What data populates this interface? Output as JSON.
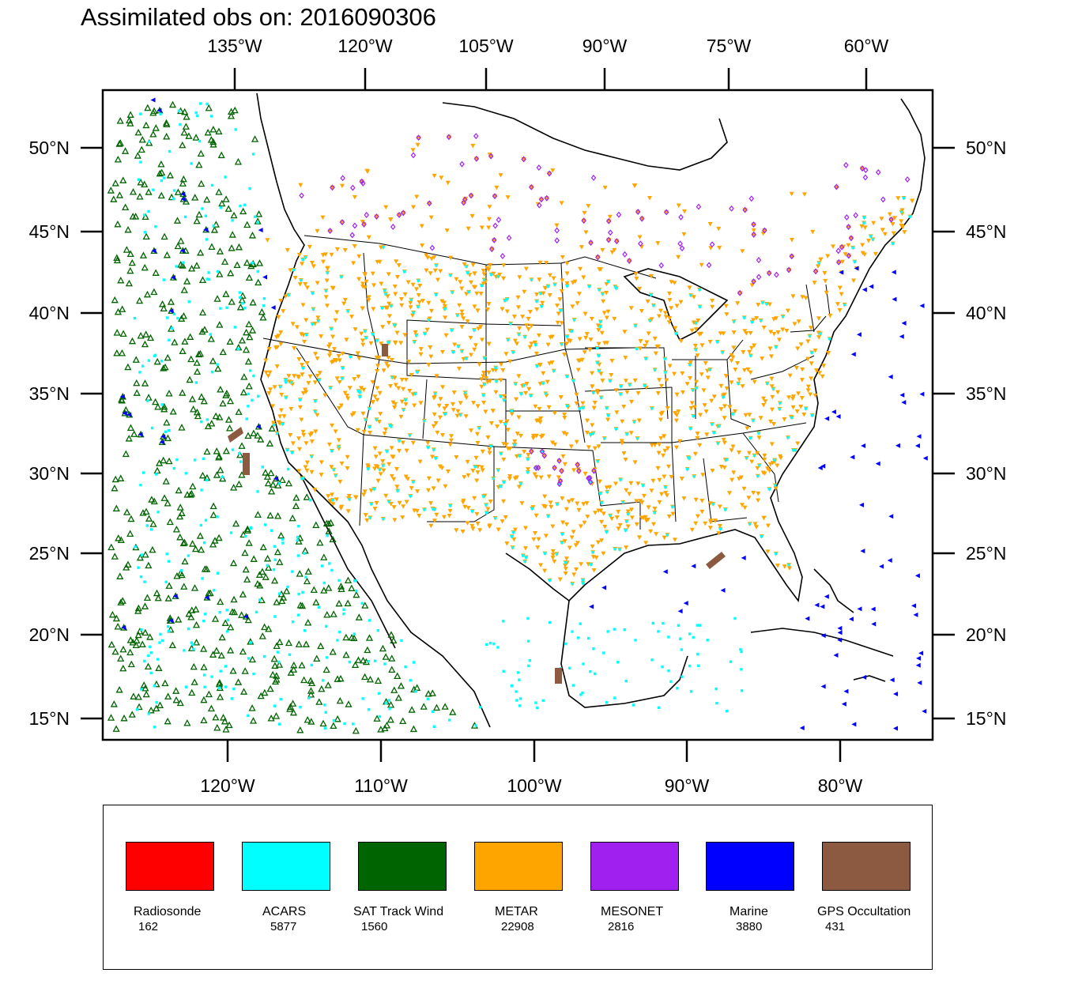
{
  "map": {
    "title": "Assimilated obs on: 2016090306",
    "top_axis_labels": [
      "135°W",
      "120°W",
      "105°W",
      "90°W",
      "75°W",
      "60°W"
    ],
    "bottom_axis_labels": [
      "120°W",
      "110°W",
      "100°W",
      "90°W",
      "80°W"
    ],
    "left_axis_labels": [
      "50°N",
      "45°N",
      "40°N",
      "35°N",
      "30°N",
      "25°N",
      "20°N",
      "15°N"
    ],
    "right_axis_labels": [
      "50°N",
      "45°N",
      "40°N",
      "35°N",
      "30°N",
      "25°N",
      "20°N",
      "15°N"
    ]
  },
  "legend": {
    "items": [
      {
        "name": "Radiosonde",
        "count": "162",
        "color": "#ff0000"
      },
      {
        "name": "ACARS",
        "count": "5877",
        "color": "#00ffff"
      },
      {
        "name": "SAT Track Wind",
        "count": "1560",
        "color": "#006400"
      },
      {
        "name": "METAR",
        "count": "22908",
        "color": "#ffa500"
      },
      {
        "name": "MESONET",
        "count": "2816",
        "color": "#a020f0"
      },
      {
        "name": "Marine",
        "count": "3880",
        "color": "#0000ff"
      },
      {
        "name": "GPS Occultation",
        "count": "431",
        "color": "#8b5a40"
      }
    ]
  },
  "colors": {
    "radiosonde": "#ff0000",
    "acars": "#00ffff",
    "satwind": "#006400",
    "metar": "#ffa500",
    "mesonet": "#a020f0",
    "marine": "#0000ff",
    "gps": "#8b5a40",
    "coast": "#000000"
  }
}
